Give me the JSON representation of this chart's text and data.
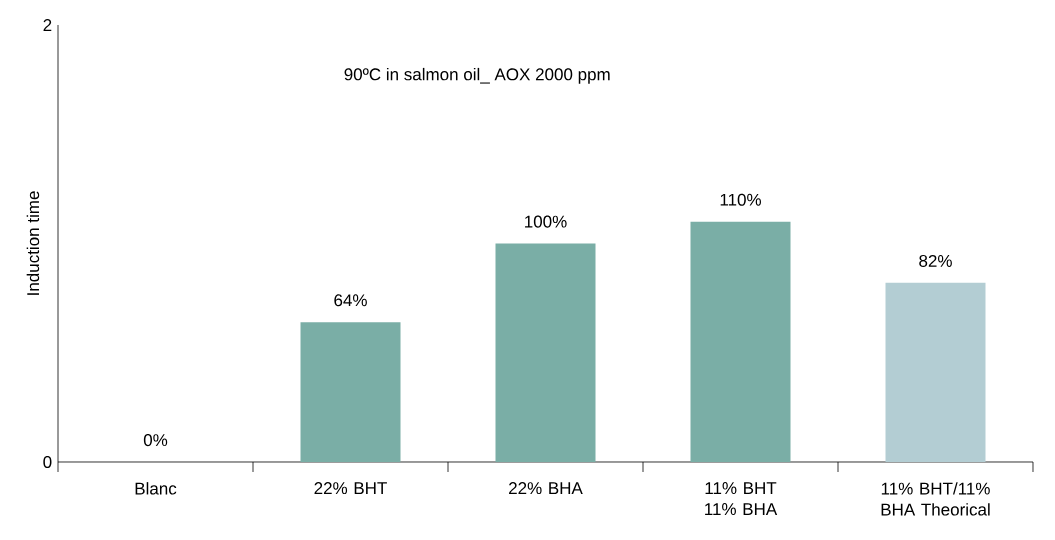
{
  "chart_data": {
    "type": "bar",
    "title": "90ºC in salmon oil_ AOX 2000 ppm",
    "ylabel": "Induction time",
    "categories": [
      "Blanc",
      "22% BHT",
      "22% BHA",
      "11% BHT 11% BHA",
      "11% BHT/11% BHA Theorical"
    ],
    "values": [
      0,
      0.64,
      1.0,
      1.1,
      0.82
    ],
    "value_labels": [
      "0%",
      "64%",
      "100%",
      "110%",
      "82%"
    ],
    "colors": [
      "#7aaea6",
      "#7aaea6",
      "#7aaea6",
      "#7aaea6",
      "#b3cdd3"
    ],
    "ylim": [
      0,
      2
    ],
    "yticks": [
      0,
      2
    ],
    "grid": false
  }
}
